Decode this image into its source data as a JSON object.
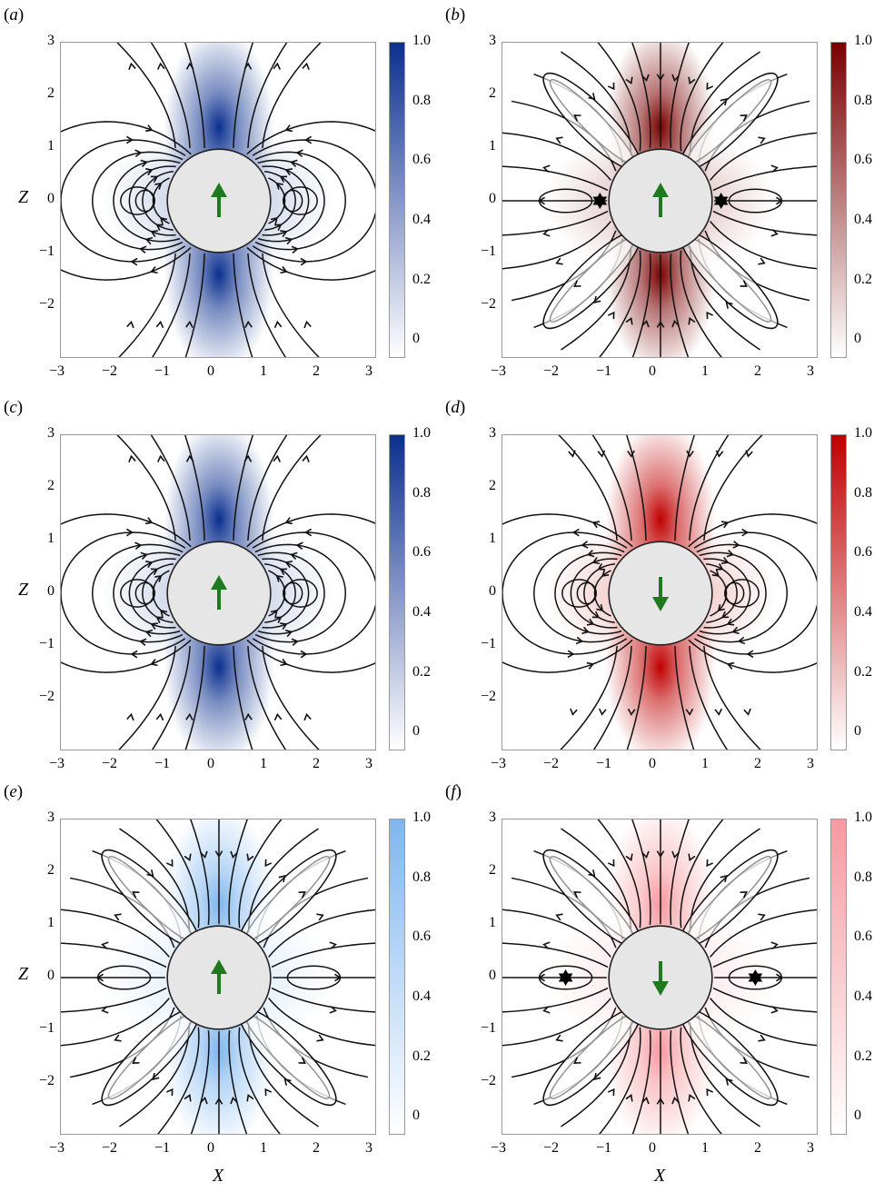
{
  "figure": {
    "x_axis_title": "X",
    "z_axis_title": "Z"
  },
  "chart_data": [
    {
      "panel": "(a)",
      "type": "heatmap",
      "colormap": "Blues",
      "colorbar_max": "1.0",
      "colorbar_ticks": [
        "1.0",
        "0.8",
        "0.6",
        "0.4",
        "0.2",
        "0"
      ],
      "xticks": [
        "-3",
        "-2",
        "-1",
        "0",
        "1",
        "2",
        "3"
      ],
      "zticks": [
        "3",
        "2",
        "1",
        "0",
        "-1",
        "-2"
      ],
      "xlim": [
        -3,
        3
      ],
      "ylim": [
        -3,
        3
      ],
      "sphere_radius": 1,
      "arrow_direction": "up",
      "stagnation_points": [],
      "pattern": "dipole",
      "color": "#0b2f8f"
    },
    {
      "panel": "(b)",
      "type": "heatmap",
      "colormap": "Reds",
      "colorbar_max": "1.0",
      "colorbar_ticks": [
        "1.0",
        "0.8",
        "0.6",
        "0.4",
        "0.2",
        "0"
      ],
      "xticks": [
        "-3",
        "-2",
        "-1",
        "0",
        "1",
        "2",
        "3"
      ],
      "zticks": [
        "3",
        "2",
        "1",
        "0",
        "-1",
        "-2"
      ],
      "xlim": [
        -3,
        3
      ],
      "ylim": [
        -3,
        3
      ],
      "sphere_radius": 1,
      "arrow_direction": "up",
      "stagnation_points": [
        [
          -1.15,
          0
        ],
        [
          1.15,
          0
        ]
      ],
      "pattern": "quadrupole",
      "color": "#7a0000"
    },
    {
      "panel": "(c)",
      "type": "heatmap",
      "colormap": "Blues",
      "colorbar_max": "1.0",
      "colorbar_ticks": [
        "1.0",
        "0.8",
        "0.6",
        "0.4",
        "0.2",
        "0"
      ],
      "xticks": [
        "-3",
        "-2",
        "-1",
        "0",
        "1",
        "2",
        "3"
      ],
      "zticks": [
        "3",
        "2",
        "1",
        "0",
        "-1",
        "-2"
      ],
      "xlim": [
        -3,
        3
      ],
      "ylim": [
        -3,
        3
      ],
      "sphere_radius": 1,
      "arrow_direction": "up",
      "stagnation_points": [],
      "pattern": "dipole",
      "color": "#0b2f8f"
    },
    {
      "panel": "(d)",
      "type": "heatmap",
      "colormap": "Reds",
      "colorbar_max": "1.0",
      "colorbar_ticks": [
        "1.0",
        "0.8",
        "0.6",
        "0.4",
        "0.2",
        "0"
      ],
      "xticks": [
        "-3",
        "-2",
        "-1",
        "0",
        "1",
        "2",
        "3"
      ],
      "zticks": [
        "3",
        "2",
        "1",
        "0",
        "-1",
        "-2"
      ],
      "xlim": [
        -3,
        3
      ],
      "ylim": [
        -3,
        3
      ],
      "sphere_radius": 1,
      "arrow_direction": "down",
      "stagnation_points": [],
      "pattern": "dipole",
      "color": "#c00000"
    },
    {
      "panel": "(e)",
      "type": "heatmap",
      "colormap": "Blues",
      "colorbar_max": "1.0",
      "colorbar_ticks": [
        "1.0",
        "0.8",
        "0.6",
        "0.4",
        "0.2",
        "0"
      ],
      "xticks": [
        "-3",
        "-2",
        "-1",
        "0",
        "1",
        "2",
        "3"
      ],
      "zticks": [
        "3",
        "2",
        "1",
        "0",
        "-1",
        "-2"
      ],
      "xlim": [
        -3,
        3
      ],
      "ylim": [
        -3,
        3
      ],
      "sphere_radius": 1,
      "arrow_direction": "up",
      "stagnation_points": [],
      "pattern": "quadrupole",
      "color": "#7fb6ef"
    },
    {
      "panel": "(f)",
      "type": "heatmap",
      "colormap": "Reds",
      "colorbar_max": "1.0",
      "colorbar_ticks": [
        "1.0",
        "0.8",
        "0.6",
        "0.4",
        "0.2",
        "0"
      ],
      "xticks": [
        "-3",
        "-2",
        "-1",
        "0",
        "1",
        "2",
        "3"
      ],
      "zticks": [
        "3",
        "2",
        "1",
        "0",
        "-1",
        "-2"
      ],
      "xlim": [
        -3,
        3
      ],
      "ylim": [
        -3,
        3
      ],
      "sphere_radius": 1,
      "arrow_direction": "down",
      "stagnation_points": [
        [
          -1.8,
          0
        ],
        [
          1.8,
          0
        ]
      ],
      "pattern": "quadrupole",
      "color": "#f59aa0"
    }
  ]
}
